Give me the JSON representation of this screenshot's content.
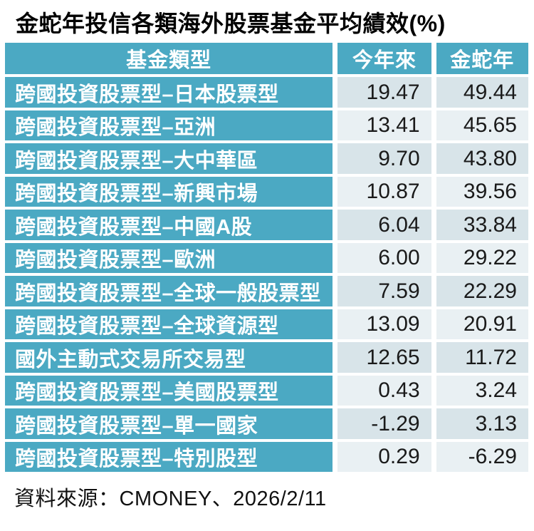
{
  "title": "金蛇年投信各類海外股票基金平均績效(%)",
  "source": "資料來源：CMONEY、2026/2/11",
  "colors": {
    "teal": "#4BA9C3",
    "cell_odd": "#D8E4E9",
    "cell_even": "#E9F0F3",
    "header_text": "#FFFFFF",
    "value_text": "#1A1A1A",
    "background": "#FFFFFF"
  },
  "table": {
    "headers": [
      "基金類型",
      "今年來",
      "金蛇年"
    ],
    "rows": [
      {
        "label": "跨國投資股票型–日本股票型",
        "ytd": "19.47",
        "snake": "49.44"
      },
      {
        "label": "跨國投資股票型–亞洲",
        "ytd": "13.41",
        "snake": "45.65"
      },
      {
        "label": "跨國投資股票型–大中華區",
        "ytd": "9.70",
        "snake": "43.80"
      },
      {
        "label": "跨國投資股票型–新興市場",
        "ytd": "10.87",
        "snake": "39.56"
      },
      {
        "label": "跨國投資股票型–中國A股",
        "ytd": "6.04",
        "snake": "33.84"
      },
      {
        "label": "跨國投資股票型–歐洲",
        "ytd": "6.00",
        "snake": "29.22"
      },
      {
        "label": "跨國投資股票型–全球一般股票型",
        "ytd": "7.59",
        "snake": "22.29"
      },
      {
        "label": "跨國投資股票型–全球資源型",
        "ytd": "13.09",
        "snake": "20.91"
      },
      {
        "label": "國外主動式交易所交易型",
        "ytd": "12.65",
        "snake": "11.72"
      },
      {
        "label": "跨國投資股票型–美國股票型",
        "ytd": "0.43",
        "snake": "3.24"
      },
      {
        "label": "跨國投資股票型–單一國家",
        "ytd": "-1.29",
        "snake": "3.13"
      },
      {
        "label": "跨國投資股票型–特別股型",
        "ytd": "0.29",
        "snake": "-6.29"
      }
    ]
  },
  "chart_data": {
    "type": "table",
    "title": "金蛇年投信各類海外股票基金平均績效(%)",
    "columns": [
      "基金類型",
      "今年來",
      "金蛇年"
    ],
    "categories": [
      "跨國投資股票型–日本股票型",
      "跨國投資股票型–亞洲",
      "跨國投資股票型–大中華區",
      "跨國投資股票型–新興市場",
      "跨國投資股票型–中國A股",
      "跨國投資股票型–歐洲",
      "跨國投資股票型–全球一般股票型",
      "跨國投資股票型–全球資源型",
      "國外主動式交易所交易型",
      "跨國投資股票型–美國股票型",
      "跨國投資股票型–單一國家",
      "跨國投資股票型–特別股型"
    ],
    "series": [
      {
        "name": "今年來",
        "values": [
          19.47,
          13.41,
          9.7,
          10.87,
          6.04,
          6.0,
          7.59,
          13.09,
          12.65,
          0.43,
          -1.29,
          0.29
        ]
      },
      {
        "name": "金蛇年",
        "values": [
          49.44,
          45.65,
          43.8,
          39.56,
          33.84,
          29.22,
          22.29,
          20.91,
          11.72,
          3.24,
          3.13,
          -6.29
        ]
      }
    ],
    "source": "資料來源：CMONEY、2026/2/11"
  }
}
